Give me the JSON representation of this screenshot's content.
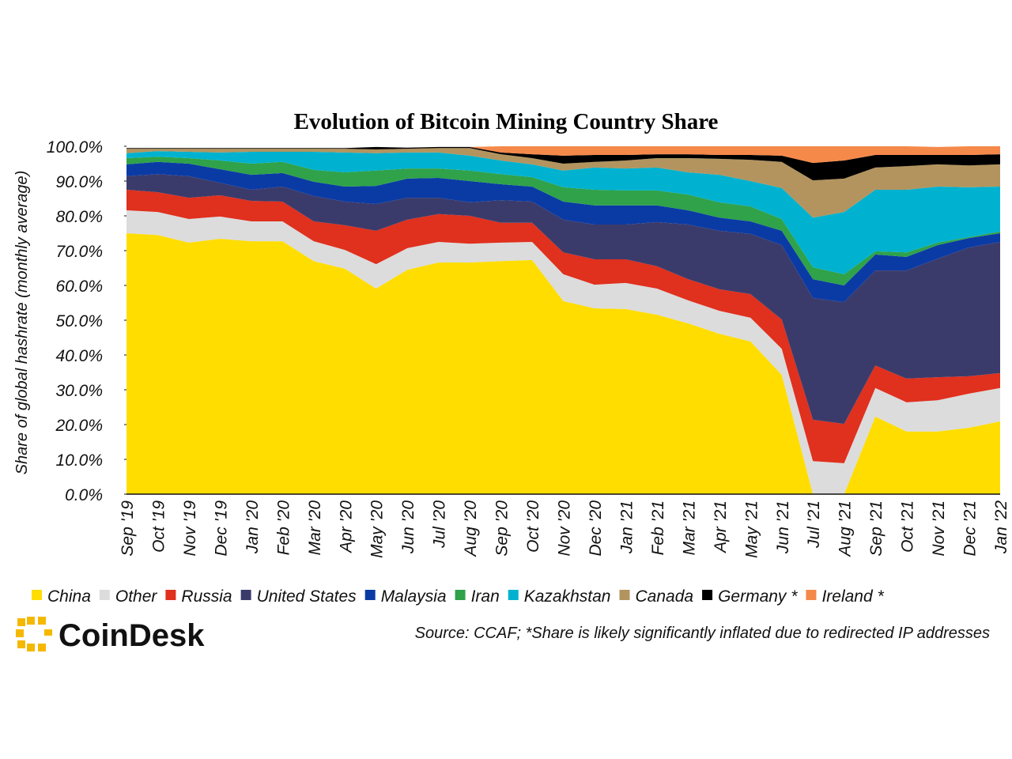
{
  "chart_data": {
    "type": "stacked-area",
    "title": "Evolution of Bitcoin Mining Country Share",
    "y_label": "Share of global hashrate (monthly average)",
    "source": "Source: CCAF; *Share is likely significantly inflated due to redirected IP addresses",
    "brand": "CoinDesk",
    "categories": [
      "Sep '19",
      "Oct '19",
      "Nov '19",
      "Dec '19",
      "Jan '20",
      "Feb '20",
      "Mar '20",
      "Apr '20",
      "May '20",
      "Jun '20",
      "Jul '20",
      "Aug '20",
      "Sep '20",
      "Oct '20",
      "Nov '20",
      "Dec '20",
      "Jan '21",
      "Feb '21",
      "Mar '21",
      "Apr '21",
      "May '21",
      "Jun '21",
      "Jul '21",
      "Aug '21",
      "Sep '21",
      "Oct '21",
      "Nov '21",
      "Dec '21",
      "Jan '22"
    ],
    "ylim": [
      0,
      100
    ],
    "yticks": [
      {
        "value": 0,
        "label": "0.0%"
      },
      {
        "value": 10,
        "label": "10.0%"
      },
      {
        "value": 20,
        "label": "20.0%"
      },
      {
        "value": 30,
        "label": "30.0%"
      },
      {
        "value": 40,
        "label": "40.0%"
      },
      {
        "value": 50,
        "label": "50.0%"
      },
      {
        "value": 60,
        "label": "60.0%"
      },
      {
        "value": 70,
        "label": "70.0%"
      },
      {
        "value": 80,
        "label": "80.0%"
      },
      {
        "value": 90,
        "label": "90.0%"
      },
      {
        "value": 100,
        "label": "100.0%"
      }
    ],
    "series": [
      {
        "name": "China",
        "color": "#FFDD00",
        "values": [
          75.0,
          74.5,
          72.3,
          73.4,
          72.7,
          72.7,
          67.0,
          64.8,
          59.1,
          64.5,
          66.6,
          66.6,
          67.0,
          67.3,
          55.5,
          53.4,
          53.2,
          51.6,
          49.1,
          46.1,
          43.9,
          34.3,
          0,
          0,
          22.3,
          18.0,
          18.0,
          19.1,
          20.9
        ]
      },
      {
        "name": "Other",
        "color": "#DCDCDC",
        "values": [
          6.6,
          6.6,
          6.8,
          6.4,
          5.7,
          5.7,
          5.7,
          5.4,
          7.0,
          6.2,
          5.9,
          5.4,
          5.3,
          5.2,
          7.7,
          6.8,
          7.5,
          7.5,
          6.6,
          6.6,
          6.8,
          7.5,
          9.5,
          8.9,
          8.2,
          8.4,
          9.0,
          9.8,
          9.6
        ]
      },
      {
        "name": "Russia",
        "color": "#E0301E",
        "values": [
          5.9,
          5.7,
          6.1,
          6.1,
          5.9,
          5.7,
          5.7,
          7.1,
          9.6,
          8.2,
          8.0,
          8.0,
          5.7,
          5.5,
          6.3,
          7.3,
          6.8,
          6.4,
          6.1,
          6.2,
          6.8,
          8.4,
          11.9,
          11.3,
          6.5,
          6.8,
          6.6,
          5.0,
          4.3
        ]
      },
      {
        "name": "United States",
        "color": "#3B3B6B",
        "values": [
          3.9,
          5.2,
          6.2,
          3.6,
          3.2,
          4.3,
          7.3,
          6.8,
          7.7,
          6.3,
          4.7,
          3.9,
          6.5,
          6.1,
          9.4,
          10.0,
          10.0,
          12.7,
          15.7,
          16.8,
          17.3,
          21.4,
          35.0,
          35.0,
          27.3,
          31.1,
          34.1,
          37.0,
          37.7
        ]
      },
      {
        "name": "Malaysia",
        "color": "#0A3BA5",
        "values": [
          3.4,
          3.5,
          3.6,
          3.9,
          4.3,
          3.9,
          4.1,
          4.3,
          5.2,
          5.5,
          5.7,
          6.1,
          4.6,
          4.3,
          5.2,
          5.5,
          5.5,
          4.8,
          4.1,
          3.8,
          3.6,
          4.1,
          5.4,
          4.8,
          4.6,
          3.9,
          3.9,
          2.7,
          2.5
        ]
      },
      {
        "name": "Iran",
        "color": "#2FA24A",
        "values": [
          1.8,
          1.5,
          1.6,
          2.5,
          3.2,
          3.2,
          3.4,
          4.1,
          4.4,
          2.9,
          2.7,
          3.0,
          2.9,
          2.7,
          4.1,
          4.5,
          4.3,
          4.3,
          4.5,
          4.4,
          4.3,
          3.4,
          3.4,
          3.2,
          0.9,
          1.3,
          0.7,
          0.3,
          0.5
        ]
      },
      {
        "name": "Kazakhstan",
        "color": "#00B2CF",
        "values": [
          1.4,
          1.6,
          1.8,
          2.3,
          3.4,
          2.9,
          5.2,
          5.7,
          5.0,
          4.6,
          4.6,
          4.3,
          3.9,
          3.7,
          4.8,
          6.4,
          6.3,
          6.6,
          6.4,
          7.9,
          7.3,
          8.9,
          14.3,
          17.9,
          17.7,
          18.0,
          16.1,
          14.3,
          12.9
        ]
      },
      {
        "name": "Canada",
        "color": "#B3945E",
        "values": [
          1.3,
          0.7,
          0.9,
          1.1,
          0.9,
          0.9,
          0.9,
          1.1,
          1.1,
          1.1,
          1.3,
          2.2,
          1.8,
          1.8,
          2.0,
          1.6,
          2.3,
          2.7,
          4.1,
          4.6,
          6.1,
          7.5,
          10.7,
          9.6,
          6.4,
          6.8,
          6.4,
          6.3,
          6.4
        ]
      },
      {
        "name": "Germany *",
        "color": "#000000",
        "values": [
          0.2,
          0.2,
          0.2,
          0.2,
          0.2,
          0.2,
          0.2,
          0.2,
          0.7,
          0.3,
          0.3,
          0.3,
          0.5,
          1.1,
          2.3,
          2.0,
          1.6,
          1.1,
          1.1,
          1.1,
          1.4,
          1.8,
          5.0,
          5.2,
          3.6,
          3.2,
          2.7,
          3.0,
          2.9
        ]
      },
      {
        "name": "Ireland *",
        "color": "#F5894A",
        "values": [
          0,
          0,
          0,
          0,
          0,
          0,
          0,
          0,
          0,
          0,
          0,
          0,
          1.8,
          2.3,
          2.7,
          2.5,
          2.5,
          2.3,
          2.3,
          2.5,
          2.5,
          2.7,
          4.8,
          4.1,
          2.5,
          2.5,
          2.3,
          2.5,
          2.3
        ]
      }
    ]
  }
}
